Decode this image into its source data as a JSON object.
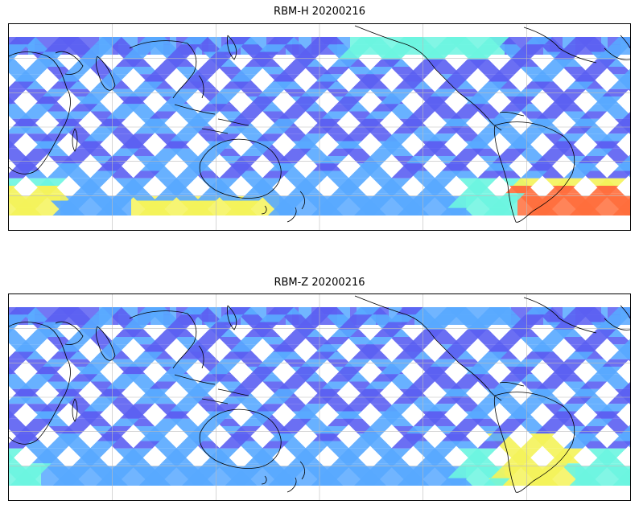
{
  "panels": [
    {
      "id": "top",
      "title": "RBM-H 20200216"
    },
    {
      "id": "bot",
      "title": "RBM-Z 20200216"
    }
  ],
  "colors": {
    "low": "#5b5ff2",
    "mid_low": "#58a8ff",
    "mid": "#6cf5e0",
    "mid_high": "#f4f35a",
    "high": "#ff6e3c",
    "grid": "#bcbcbc",
    "coast": "#000000"
  }
}
